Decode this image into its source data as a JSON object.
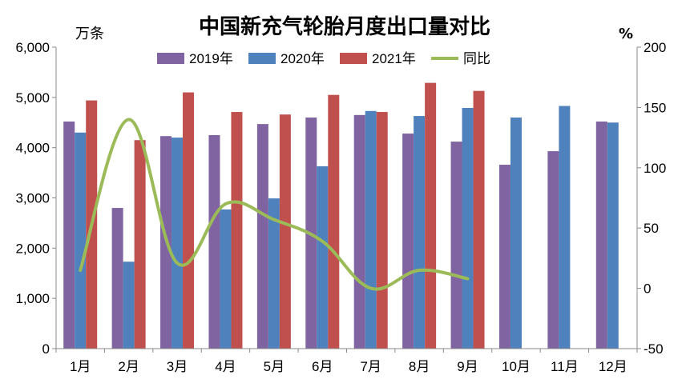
{
  "chart_data": {
    "type": "bar",
    "title": "中国新充气轮胎月度出口量对比",
    "y_unit_left": "万条",
    "y_unit_right": "%",
    "categories": [
      "1月",
      "2月",
      "3月",
      "4月",
      "5月",
      "6月",
      "7月",
      "8月",
      "9月",
      "10月",
      "11月",
      "12月"
    ],
    "y_left_ticks": [
      "0",
      "1,000",
      "2,000",
      "3,000",
      "4,000",
      "5,000",
      "6,000"
    ],
    "y_right_ticks": [
      "-50",
      "0",
      "50",
      "100",
      "150",
      "200"
    ],
    "ylim_left": [
      0,
      6000
    ],
    "ylim_right": [
      -50,
      200
    ],
    "series": [
      {
        "name": "2019年",
        "type": "bar",
        "color": "#8064A2",
        "values": [
          4520,
          2800,
          4230,
          4250,
          4470,
          4600,
          4650,
          4280,
          4120,
          3660,
          3930,
          4520
        ]
      },
      {
        "name": "2020年",
        "type": "bar",
        "color": "#4F81BD",
        "values": [
          4300,
          1730,
          4200,
          2770,
          2990,
          3630,
          4730,
          4630,
          4790,
          4600,
          4830,
          4500
        ]
      },
      {
        "name": "2021年",
        "type": "bar",
        "color": "#C0504D",
        "values": [
          4940,
          4150,
          5100,
          4710,
          4660,
          5050,
          4710,
          5290,
          5130,
          null,
          null,
          null
        ]
      },
      {
        "name": "同比",
        "type": "line",
        "axis": "right",
        "color": "#9BBB59",
        "values": [
          15,
          140,
          21,
          70,
          57,
          39,
          0,
          15,
          8,
          null,
          null,
          null
        ]
      }
    ],
    "legend_position": "top",
    "grid": false
  }
}
